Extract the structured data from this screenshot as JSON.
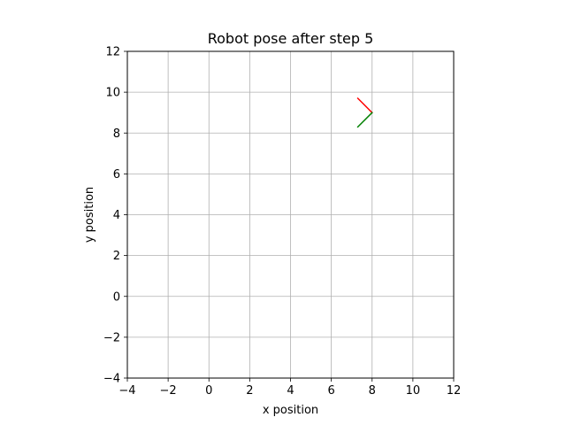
{
  "chart_data": {
    "type": "line",
    "title": "Robot pose after step 5",
    "xlabel": "x position",
    "ylabel": "y position",
    "xlim": [
      -4,
      12
    ],
    "ylim": [
      -4,
      12
    ],
    "xticks": [
      -4,
      -2,
      0,
      2,
      4,
      6,
      8,
      10,
      12
    ],
    "yticks": [
      -4,
      -2,
      0,
      2,
      4,
      6,
      8,
      10,
      12
    ],
    "xtick_labels": [
      "−4",
      "−2",
      "0",
      "2",
      "4",
      "6",
      "8",
      "10",
      "12"
    ],
    "ytick_labels": [
      "−4",
      "−2",
      "0",
      "2",
      "4",
      "6",
      "8",
      "10",
      "12"
    ],
    "grid": true,
    "series": [
      {
        "color": "#ff0000",
        "x": [
          8.0,
          7.3
        ],
        "y": [
          9.0,
          9.7
        ]
      },
      {
        "color": "#008000",
        "x": [
          8.0,
          7.3
        ],
        "y": [
          9.0,
          8.3
        ]
      }
    ]
  }
}
